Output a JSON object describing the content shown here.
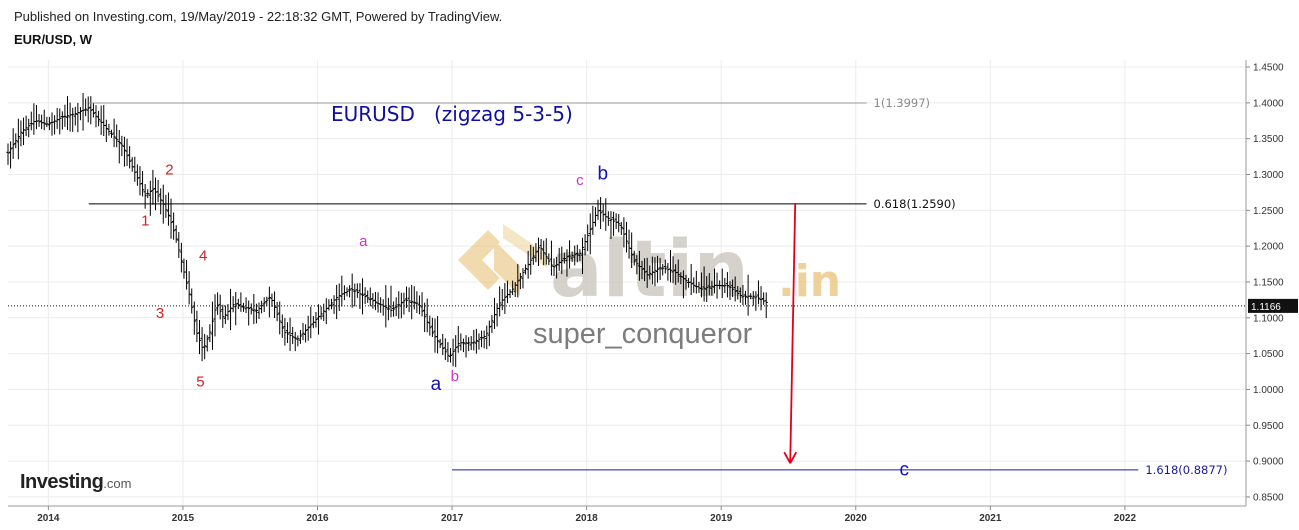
{
  "header": {
    "published": "Published on Investing.com, 19/May/2019 - 22:18:32 GMT, Powered by TradingView.",
    "symbol": "EUR/USD, W"
  },
  "watermark": {
    "brand_main": "altin",
    "brand_tld": ".in",
    "author": "super_conqueror"
  },
  "logo": {
    "main": "Investing",
    "suffix": ".com"
  },
  "colors": {
    "price": "#000000",
    "arrow": "#e0001b",
    "title": "#1010a0",
    "red_labels": "#d42020",
    "magenta_labels": "#cc33cc",
    "blue_labels": "#1010c0",
    "line_1618": "#1a1aa0",
    "watermark_gold": "#e9c27a",
    "watermark_gray": "#c8c4bc"
  },
  "chart_data": {
    "type": "line",
    "title": "EURUSD   (zigzag 5-3-5)",
    "x_ticks": [
      "2014",
      "2015",
      "2016",
      "2017",
      "2018",
      "2019",
      "2020",
      "2021",
      "2022"
    ],
    "x_range": [
      2013.7,
      2022.9
    ],
    "y_ticks": [
      "1.4500",
      "1.4000",
      "1.3500",
      "1.3000",
      "1.2500",
      "1.2000",
      "1.1500",
      "1.1000",
      "1.0500",
      "1.0000",
      "0.9500",
      "0.9000",
      "0.8500"
    ],
    "ylim": [
      0.8373,
      1.4598
    ],
    "current_price": {
      "value": 1.1166,
      "label": "1.1166"
    },
    "price_series": {
      "x": [
        2013.7,
        2013.8,
        2013.9,
        2014.0,
        2014.1,
        2014.2,
        2014.3,
        2014.45,
        2014.55,
        2014.65,
        2014.72,
        2014.78,
        2014.85,
        2014.9,
        2014.95,
        2015.0,
        2015.05,
        2015.1,
        2015.15,
        2015.2,
        2015.25,
        2015.3,
        2015.38,
        2015.45,
        2015.55,
        2015.65,
        2015.75,
        2015.85,
        2015.95,
        2016.05,
        2016.15,
        2016.25,
        2016.35,
        2016.45,
        2016.55,
        2016.65,
        2016.75,
        2016.85,
        2016.92,
        2016.98,
        2017.05,
        2017.15,
        2017.25,
        2017.35,
        2017.45,
        2017.55,
        2017.65,
        2017.75,
        2017.85,
        2017.95,
        2018.02,
        2018.08,
        2018.15,
        2018.25,
        2018.35,
        2018.45,
        2018.55,
        2018.65,
        2018.75,
        2018.85,
        2018.95,
        2019.05,
        2019.15,
        2019.25,
        2019.35
      ],
      "y": [
        1.33,
        1.36,
        1.375,
        1.37,
        1.38,
        1.385,
        1.393,
        1.36,
        1.34,
        1.3,
        1.27,
        1.28,
        1.26,
        1.24,
        1.21,
        1.17,
        1.13,
        1.08,
        1.055,
        1.08,
        1.12,
        1.1,
        1.12,
        1.115,
        1.11,
        1.13,
        1.08,
        1.07,
        1.09,
        1.11,
        1.13,
        1.14,
        1.13,
        1.12,
        1.11,
        1.125,
        1.12,
        1.08,
        1.06,
        1.045,
        1.065,
        1.065,
        1.075,
        1.12,
        1.14,
        1.17,
        1.2,
        1.17,
        1.185,
        1.19,
        1.22,
        1.25,
        1.24,
        1.23,
        1.18,
        1.16,
        1.17,
        1.165,
        1.15,
        1.14,
        1.145,
        1.145,
        1.13,
        1.13,
        1.12
      ]
    },
    "levels": [
      {
        "label": "1(1.3997)",
        "value": 1.3997,
        "x_start": 2014.3,
        "x_end": 2020.08
      },
      {
        "label": "0.618(1.2590)",
        "value": 1.259,
        "x_start": 2014.3,
        "x_end": 2020.08
      },
      {
        "label": "1.618(0.8877)",
        "value": 0.8877,
        "x_start": 2017.0,
        "x_end": 2022.1
      }
    ],
    "arrow": {
      "x": 2019.55,
      "y_from": 1.26,
      "y_to": 0.897
    },
    "wave_labels": [
      {
        "text": "1",
        "x": 2014.72,
        "y": 1.229,
        "color": "red"
      },
      {
        "text": "2",
        "x": 2014.9,
        "y": 1.3,
        "color": "red"
      },
      {
        "text": "3",
        "x": 2014.83,
        "y": 1.1,
        "color": "red"
      },
      {
        "text": "4",
        "x": 2015.15,
        "y": 1.18,
        "color": "red"
      },
      {
        "text": "5",
        "x": 2015.13,
        "y": 1.004,
        "color": "red"
      },
      {
        "text": "a",
        "x": 2016.34,
        "y": 1.2,
        "color": "magenta"
      },
      {
        "text": "b",
        "x": 2017.02,
        "y": 1.012,
        "color": "magenta"
      },
      {
        "text": "c",
        "x": 2017.95,
        "y": 1.285,
        "color": "magenta"
      },
      {
        "text": "a",
        "x": 2016.88,
        "y": 0.999,
        "color": "blue"
      },
      {
        "text": "b",
        "x": 2018.12,
        "y": 1.293,
        "color": "blue"
      },
      {
        "text": "c",
        "x": 2020.36,
        "y": 0.88,
        "color": "blue"
      }
    ]
  }
}
